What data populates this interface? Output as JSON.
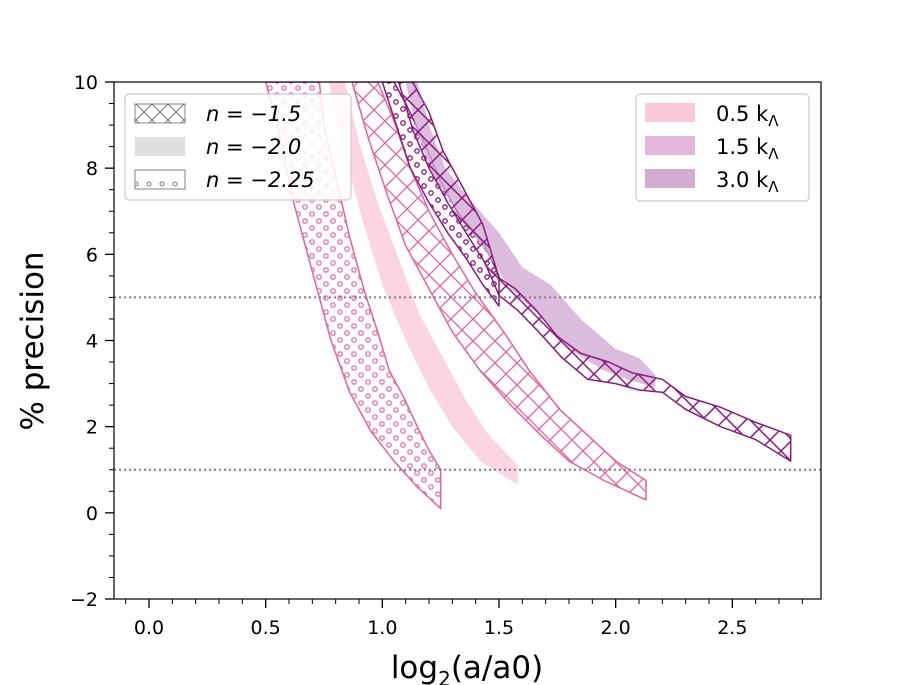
{
  "chart_data": {
    "type": "area",
    "xlabel": "log",
    "xlabel_sub": "2",
    "xlabel_tail": "(a/a0)",
    "ylabel": "% precision",
    "xlim": [
      -0.15,
      2.88
    ],
    "ylim": [
      -2,
      10
    ],
    "xticks": [
      0.0,
      0.5,
      1.0,
      1.5,
      2.0,
      2.5
    ],
    "xtick_labels": [
      "0.0",
      "0.5",
      "1.0",
      "1.5",
      "2.0",
      "2.5"
    ],
    "yticks": [
      -2,
      0,
      2,
      4,
      6,
      8,
      10
    ],
    "ytick_labels": [
      "−2",
      "0",
      "2",
      "4",
      "6",
      "8",
      "10"
    ],
    "hlines": [
      {
        "y": 5,
        "color": "#808080",
        "style": "dotted"
      },
      {
        "y": 1,
        "color": "#808080",
        "style": "dotted"
      }
    ],
    "legend_pattern": {
      "position": "top-left",
      "entries": [
        {
          "pattern": "crosshatch",
          "label": "n = −1.5"
        },
        {
          "pattern": "solid",
          "label": "n = −2.0"
        },
        {
          "pattern": "dots",
          "label": "n = −2.25"
        }
      ]
    },
    "legend_scale": {
      "position": "top-right",
      "entries": [
        {
          "label": "0.5 k",
          "sub": "Λ",
          "color": "#fbc9dc"
        },
        {
          "label": "1.5 k",
          "sub": "Λ",
          "color": "#e6b6da"
        },
        {
          "label": "3.0 k",
          "sub": "Λ",
          "color": "#d2abd3"
        }
      ]
    },
    "series": [
      {
        "scale": "0.5 kΛ",
        "pattern": "dots",
        "color": "#e8619e",
        "upper": [
          [
            0.73,
            10
          ],
          [
            0.75,
            9
          ],
          [
            0.8,
            7.8
          ],
          [
            0.86,
            6.4
          ],
          [
            0.92,
            5.2
          ],
          [
            0.98,
            4.2
          ],
          [
            1.03,
            3.3
          ],
          [
            1.09,
            2.7
          ],
          [
            1.15,
            2.0
          ],
          [
            1.2,
            1.45
          ],
          [
            1.25,
            1.0
          ]
        ],
        "lower": [
          [
            0.5,
            10
          ],
          [
            0.55,
            9.0
          ],
          [
            0.62,
            7.2
          ],
          [
            0.7,
            5.6
          ],
          [
            0.78,
            4.0
          ],
          [
            0.86,
            2.8
          ],
          [
            0.95,
            1.9
          ],
          [
            1.05,
            1.2
          ],
          [
            1.15,
            0.6
          ],
          [
            1.25,
            0.1
          ]
        ]
      },
      {
        "scale": "0.5 kΛ",
        "pattern": "solid",
        "color": "#fbc9dc",
        "upper": [
          [
            0.84,
            10
          ],
          [
            0.9,
            8.6
          ],
          [
            0.98,
            7.2
          ],
          [
            1.07,
            5.9
          ],
          [
            1.16,
            4.6
          ],
          [
            1.27,
            3.5
          ],
          [
            1.36,
            2.6
          ],
          [
            1.45,
            1.85
          ],
          [
            1.58,
            1.1
          ]
        ],
        "lower": [
          [
            0.77,
            10
          ],
          [
            0.84,
            8.3
          ],
          [
            0.92,
            6.7
          ],
          [
            1.0,
            5.3
          ],
          [
            1.1,
            4.0
          ],
          [
            1.2,
            2.9
          ],
          [
            1.3,
            2.0
          ],
          [
            1.42,
            1.2
          ],
          [
            1.58,
            0.65
          ]
        ]
      },
      {
        "scale": "0.5 kΛ",
        "pattern": "crosshatch",
        "color": "#e8619e",
        "upper": [
          [
            0.98,
            10
          ],
          [
            1.05,
            9.1
          ],
          [
            1.12,
            8.0
          ],
          [
            1.2,
            7.0
          ],
          [
            1.3,
            6.0
          ],
          [
            1.4,
            5.1
          ],
          [
            1.52,
            4.2
          ],
          [
            1.63,
            3.3
          ],
          [
            1.76,
            2.4
          ],
          [
            1.9,
            1.7
          ],
          [
            2.0,
            1.2
          ],
          [
            2.13,
            0.75
          ]
        ],
        "lower": [
          [
            0.87,
            10
          ],
          [
            0.94,
            8.7
          ],
          [
            1.02,
            7.4
          ],
          [
            1.1,
            6.2
          ],
          [
            1.2,
            5.2
          ],
          [
            1.3,
            4.2
          ],
          [
            1.42,
            3.3
          ],
          [
            1.55,
            2.5
          ],
          [
            1.68,
            1.8
          ],
          [
            1.8,
            1.2
          ],
          [
            1.95,
            0.75
          ],
          [
            2.13,
            0.3
          ]
        ]
      },
      {
        "scale": "1.5 kΛ",
        "pattern": "dots",
        "color": "#8b1a80",
        "upper": [
          [
            1.05,
            10
          ],
          [
            1.1,
            9.5
          ],
          [
            1.18,
            8.6
          ],
          [
            1.25,
            7.7
          ],
          [
            1.32,
            7.0
          ],
          [
            1.38,
            6.6
          ],
          [
            1.44,
            6.2
          ],
          [
            1.5,
            5.5
          ]
        ],
        "lower": [
          [
            1.0,
            10
          ],
          [
            1.06,
            9.0
          ],
          [
            1.12,
            8.0
          ],
          [
            1.2,
            7.2
          ],
          [
            1.28,
            6.5
          ],
          [
            1.36,
            5.9
          ],
          [
            1.43,
            5.3
          ],
          [
            1.5,
            4.8
          ]
        ]
      },
      {
        "scale": "3.0 kΛ",
        "pattern": "solid",
        "color": "#d2abd3",
        "upper": [
          [
            1.15,
            10
          ],
          [
            1.2,
            9.0
          ],
          [
            1.27,
            8.0
          ],
          [
            1.37,
            7.3
          ],
          [
            1.5,
            6.5
          ],
          [
            1.6,
            5.7
          ],
          [
            1.72,
            5.3
          ],
          [
            1.85,
            4.5
          ],
          [
            2.0,
            3.8
          ],
          [
            2.1,
            3.6
          ],
          [
            2.17,
            3.2
          ]
        ],
        "lower": [
          [
            1.1,
            10
          ],
          [
            1.15,
            8.8
          ],
          [
            1.22,
            7.8
          ],
          [
            1.32,
            7.0
          ],
          [
            1.45,
            6.0
          ],
          [
            1.55,
            5.2
          ],
          [
            1.67,
            4.6
          ],
          [
            1.8,
            3.8
          ],
          [
            1.95,
            3.3
          ],
          [
            2.05,
            3.1
          ],
          [
            2.17,
            2.9
          ]
        ]
      },
      {
        "scale": "3.0 kΛ",
        "pattern": "crosshatch",
        "color": "#8b1a80",
        "upper": [
          [
            1.13,
            10
          ],
          [
            1.2,
            9.3
          ],
          [
            1.26,
            8.4
          ],
          [
            1.34,
            7.6
          ],
          [
            1.43,
            6.7
          ],
          [
            1.5,
            5.45
          ],
          [
            1.57,
            5.2
          ],
          [
            1.66,
            4.7
          ],
          [
            1.75,
            4.1
          ],
          [
            1.85,
            3.7
          ],
          [
            1.97,
            3.5
          ],
          [
            2.07,
            3.25
          ],
          [
            2.2,
            3.1
          ],
          [
            2.3,
            2.7
          ],
          [
            2.45,
            2.45
          ],
          [
            2.6,
            2.1
          ],
          [
            2.75,
            1.8
          ]
        ],
        "lower": [
          [
            1.07,
            10
          ],
          [
            1.13,
            8.9
          ],
          [
            1.2,
            8.0
          ],
          [
            1.28,
            7.2
          ],
          [
            1.37,
            6.4
          ],
          [
            1.44,
            5.8
          ],
          [
            1.5,
            5.05
          ],
          [
            1.58,
            4.7
          ],
          [
            1.67,
            4.2
          ],
          [
            1.77,
            3.6
          ],
          [
            1.88,
            3.1
          ],
          [
            2.0,
            3.0
          ],
          [
            2.1,
            2.85
          ],
          [
            2.2,
            2.8
          ],
          [
            2.3,
            2.4
          ],
          [
            2.45,
            2.0
          ],
          [
            2.6,
            1.7
          ],
          [
            2.75,
            1.2
          ]
        ]
      }
    ]
  }
}
